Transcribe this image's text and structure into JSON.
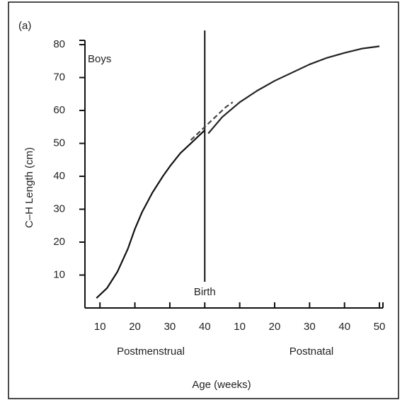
{
  "chart_data": {
    "type": "line",
    "panel_label": "(a)",
    "annotation": "Boys",
    "ylabel": "C–H Length (cm)",
    "xlabel": "Age (weeks)",
    "x_group_labels": [
      "Postmenstrual",
      "Postnatal"
    ],
    "birth_label": "Birth",
    "birth_x": 40,
    "xlim": [
      5.7,
      91
    ],
    "ylim": [
      0,
      81.3
    ],
    "yticks": [
      10,
      20,
      30,
      40,
      50,
      60,
      70,
      80
    ],
    "xticks": [
      10,
      20,
      30,
      40,
      {
        "value": 50,
        "label": "10"
      },
      {
        "value": 60,
        "label": "20"
      },
      {
        "value": 70,
        "label": "30"
      },
      {
        "value": 80,
        "label": "40"
      },
      {
        "value": 90,
        "label": "50"
      }
    ],
    "series": [
      {
        "color": "#111111",
        "style": "solid",
        "x": [
          9,
          12,
          15,
          18,
          20,
          22,
          25,
          28,
          30,
          33,
          36,
          38,
          40
        ],
        "values": [
          3,
          6,
          11,
          18,
          24,
          29,
          35,
          40,
          43,
          47,
          50,
          52,
          54
        ]
      },
      {
        "color": "#444444",
        "style": "dashed",
        "x": [
          36,
          38,
          40,
          42,
          44,
          46,
          48
        ],
        "values": [
          51,
          53,
          55,
          57,
          59,
          61,
          62.5
        ]
      },
      {
        "color": "#222222",
        "style": "solid",
        "x": [
          41,
          45,
          50,
          55,
          60,
          65,
          70,
          75,
          80,
          85,
          90
        ],
        "values": [
          53,
          58,
          62.5,
          66,
          69,
          71.5,
          74,
          76,
          77.5,
          78.8,
          79.5
        ]
      }
    ]
  }
}
